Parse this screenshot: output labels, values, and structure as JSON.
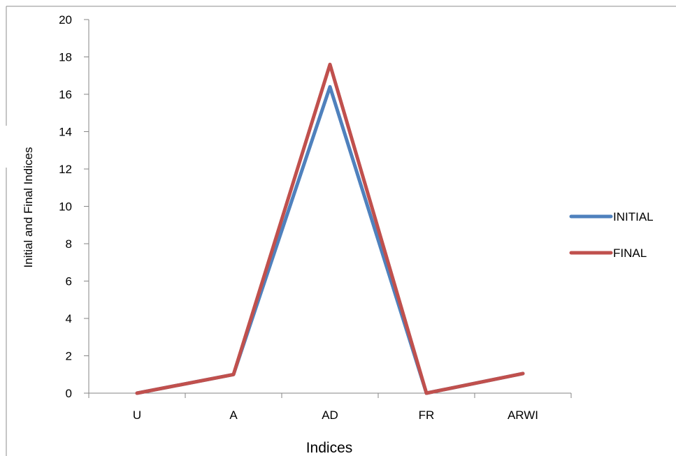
{
  "chart_data": {
    "type": "line",
    "categories": [
      "U",
      "A",
      "AD",
      "FR",
      "ARWI"
    ],
    "series": [
      {
        "name": "INITIAL",
        "values": [
          0,
          1,
          16.4,
          0,
          1.05
        ],
        "color": "#4F81BD"
      },
      {
        "name": "FINAL",
        "values": [
          0,
          1,
          17.6,
          0,
          1.05
        ],
        "color": "#C0504D"
      }
    ],
    "xlabel": "Indices",
    "ylabel": "Initial and Final Indices",
    "ylim": [
      0,
      20
    ],
    "yticks": [
      0,
      2,
      4,
      6,
      8,
      10,
      12,
      14,
      16,
      18,
      20
    ],
    "grid": false,
    "legend_position": "right"
  }
}
